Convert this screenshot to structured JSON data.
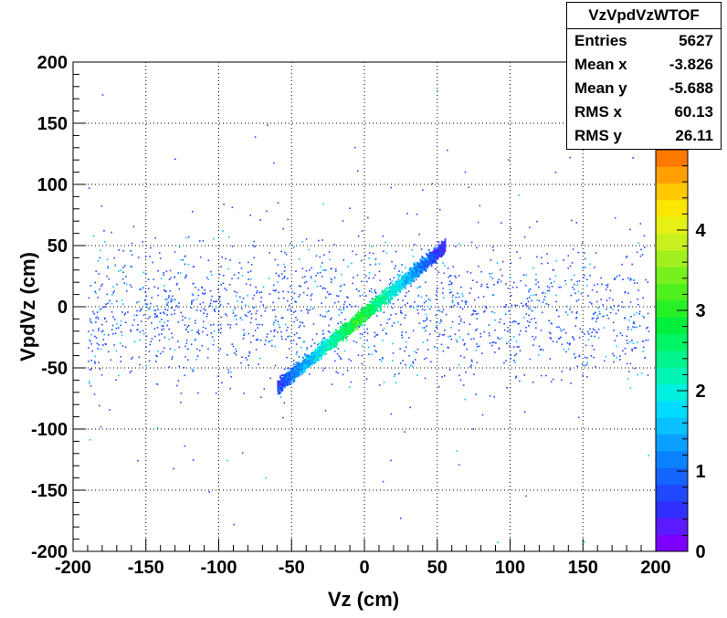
{
  "chart_data": {
    "type": "heatmap",
    "title": "",
    "xlabel": "Vz (cm)",
    "ylabel": "VpdVz (cm)",
    "xlim": [
      -200,
      200
    ],
    "ylim": [
      -200,
      200
    ],
    "xticks": [
      "-200",
      "-150",
      "-100",
      "-50",
      "0",
      "50",
      "100",
      "150",
      "200"
    ],
    "yticks": [
      "200",
      "150",
      "100",
      "50",
      "0",
      "-50",
      "-100",
      "-150",
      "-200"
    ],
    "grid": true,
    "colorbar": {
      "zlim": [
        0,
        5
      ],
      "ticks": [
        "0",
        "1",
        "2",
        "3",
        "4"
      ],
      "colors": [
        "#7b00ff",
        "#5a1cff",
        "#2f2fff",
        "#1f48ff",
        "#1464ff",
        "#0a82ff",
        "#0aa0ff",
        "#0ac0ff",
        "#00dcff",
        "#00f0e0",
        "#00f5b4",
        "#00f58c",
        "#00f564",
        "#00f03c",
        "#28f028",
        "#50f01e",
        "#78f01e",
        "#a0f01e",
        "#c8f01e",
        "#e6f014",
        "#fae600",
        "#ffc800",
        "#ffa000",
        "#ff7800"
      ]
    },
    "distribution": {
      "correlated_band": {
        "x_range": [
          -60,
          55
        ],
        "slope": 1.0,
        "intercept": -5,
        "approx_entries": 3800
      },
      "diffuse_background": {
        "x_range": [
          -190,
          195
        ],
        "y_center": -5,
        "y_spread": 40,
        "approx_entries": 1800
      }
    },
    "stats": {
      "name": "VzVpdVzWTOF",
      "rows": [
        {
          "label": "Entries",
          "value": "5627"
        },
        {
          "label": "Mean x",
          "value": "-3.826"
        },
        {
          "label": "Mean y",
          "value": "-5.688"
        },
        {
          "label": "RMS x",
          "value": "60.13"
        },
        {
          "label": "RMS y",
          "value": "26.11"
        }
      ]
    }
  }
}
